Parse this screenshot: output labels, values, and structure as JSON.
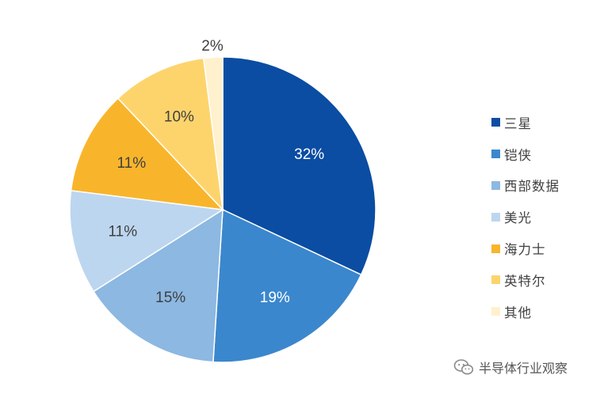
{
  "chart_data": {
    "type": "pie",
    "slices": [
      {
        "label": "三星",
        "value": 32,
        "display": "32%",
        "color": "#0a4da2",
        "text_color": "#ffffff"
      },
      {
        "label": "铠侠",
        "value": 19,
        "display": "19%",
        "color": "#3b87cd",
        "text_color": "#ffffff"
      },
      {
        "label": "西部数据",
        "value": 15,
        "display": "15%",
        "color": "#8cb8e2",
        "text_color": "#404040"
      },
      {
        "label": "美光",
        "value": 11,
        "display": "11%",
        "color": "#bdd6ef",
        "text_color": "#404040"
      },
      {
        "label": "海力士",
        "value": 11,
        "display": "11%",
        "color": "#f8b52c",
        "text_color": "#404040"
      },
      {
        "label": "英特尔",
        "value": 10,
        "display": "10%",
        "color": "#fdd46c",
        "text_color": "#404040"
      },
      {
        "label": "其他",
        "value": 2,
        "display": "2%",
        "color": "#fff1cd",
        "text_color": "#404040"
      }
    ],
    "start_angle": "12 o'clock, clockwise",
    "legend_position": "right"
  },
  "watermark": {
    "text": "半导体行业观察",
    "icon": "wechat-icon"
  }
}
